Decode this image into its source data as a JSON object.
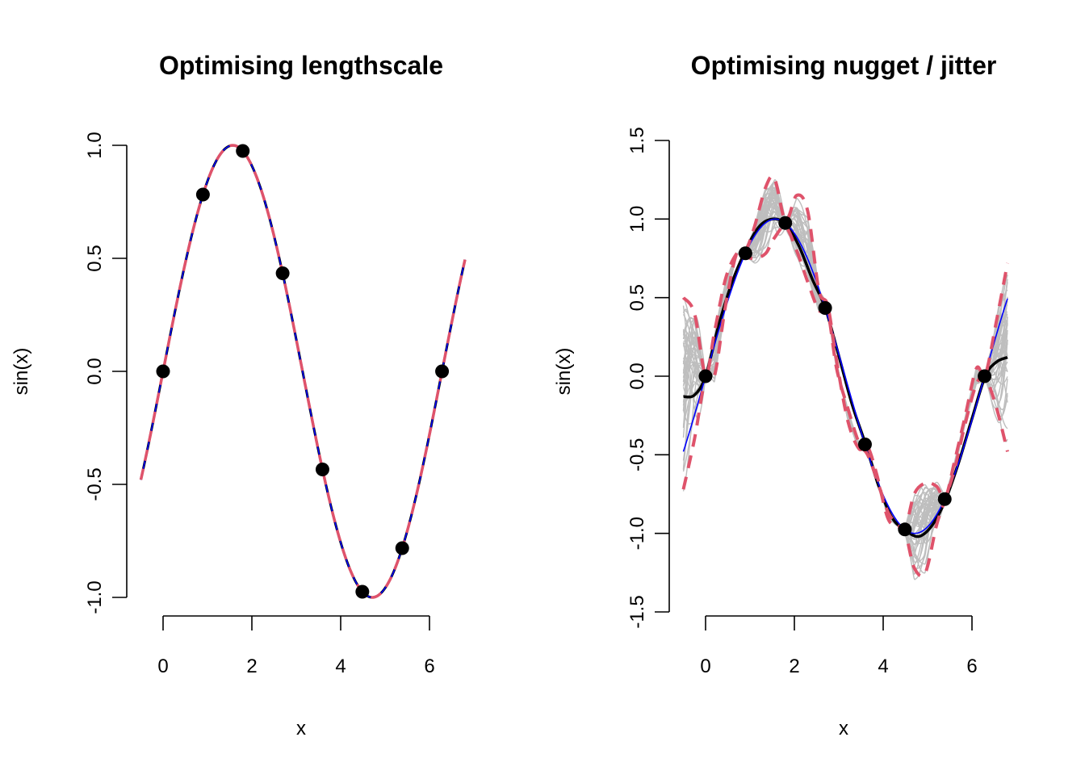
{
  "chart_data": [
    {
      "type": "line",
      "title": "Optimising lengthscale",
      "xlabel": "x",
      "ylabel": "sin(x)",
      "xlim": [
        -0.5,
        6.8
      ],
      "ylim": [
        -1.0,
        1.0
      ],
      "x_ticks": [
        0,
        2,
        4,
        6
      ],
      "y_ticks": [
        -1.0,
        -0.5,
        0.0,
        0.5,
        1.0
      ],
      "x_tick_labels": [
        "0",
        "2",
        "4",
        "6"
      ],
      "y_tick_labels": [
        "-1.0",
        "-0.5",
        "0.0",
        "0.5",
        "1.0"
      ],
      "grid": false,
      "points": {
        "x": [
          0.0,
          0.898,
          1.795,
          2.693,
          3.59,
          4.488,
          5.386,
          6.283
        ],
        "y": [
          0.0,
          0.782,
          0.975,
          0.434,
          -0.434,
          -0.975,
          -0.782,
          0.0
        ],
        "color": "#000000"
      },
      "series": [
        {
          "function": "sin",
          "x_range": [
            -0.5,
            6.8
          ],
          "color": "#000000",
          "style": "solid"
        },
        {
          "function": "sin",
          "x_range": [
            -0.5,
            6.8
          ],
          "color": "#0000ff",
          "style": "solid"
        },
        {
          "function": "sin",
          "x_range": [
            -0.5,
            6.8
          ],
          "color": "#df536b",
          "style": "dashed"
        }
      ]
    },
    {
      "type": "line",
      "title": "Optimising nugget / jitter",
      "xlabel": "x",
      "ylabel": "sin(x)",
      "xlim": [
        -0.5,
        6.8
      ],
      "ylim": [
        -1.5,
        1.5
      ],
      "x_ticks": [
        0,
        2,
        4,
        6
      ],
      "y_ticks": [
        -1.5,
        -1.0,
        -0.5,
        0.0,
        0.5,
        1.0,
        1.5
      ],
      "x_tick_labels": [
        "0",
        "2",
        "4",
        "6"
      ],
      "y_tick_labels": [
        "-1.5",
        "-1.0",
        "-0.5",
        "0.0",
        "0.5",
        "1.0",
        "1.5"
      ],
      "grid": false,
      "points": {
        "x": [
          0.0,
          0.898,
          1.795,
          2.693,
          3.59,
          4.488,
          5.386,
          6.283
        ],
        "y": [
          0.0,
          0.782,
          0.975,
          0.434,
          -0.434,
          -0.975,
          -0.782,
          0.0
        ],
        "color": "#000000"
      },
      "series": [
        {
          "name": "samples",
          "color": "#bebebe",
          "style": "solid",
          "count": 40
        },
        {
          "name": "mean",
          "color": "#000000",
          "style": "solid",
          "x": [
            -0.5,
            -0.25,
            0.0,
            0.3,
            0.6,
            0.9,
            1.2,
            1.5,
            1.8,
            2.1,
            2.4,
            2.7,
            3.0,
            3.3,
            3.6,
            3.9,
            4.2,
            4.5,
            4.8,
            5.1,
            5.4,
            5.7,
            6.0,
            6.3,
            6.55,
            6.8
          ],
          "y": [
            -0.13,
            -0.12,
            0.0,
            0.33,
            0.6,
            0.8,
            0.95,
            1.0,
            0.97,
            0.83,
            0.62,
            0.43,
            0.13,
            -0.18,
            -0.43,
            -0.7,
            -0.9,
            -0.98,
            -1.02,
            -0.95,
            -0.79,
            -0.55,
            -0.27,
            0.0,
            0.09,
            0.12
          ]
        },
        {
          "name": "truth",
          "function": "sin",
          "x_range": [
            -0.5,
            6.8
          ],
          "color": "#0000ff",
          "style": "solid"
        },
        {
          "name": "upper",
          "color": "#df536b",
          "style": "dashed",
          "x": [
            -0.5,
            -0.25,
            0.0,
            0.2,
            0.45,
            0.7,
            0.9,
            1.1,
            1.35,
            1.55,
            1.8,
            2.05,
            2.3,
            2.55,
            2.75,
            2.95,
            3.2,
            3.45,
            3.65,
            3.85,
            4.1,
            4.3,
            4.5,
            4.7,
            4.95,
            5.2,
            5.4,
            5.6,
            5.85,
            6.1,
            6.3,
            6.55,
            6.8
          ],
          "y": [
            0.5,
            0.4,
            0.01,
            0.28,
            0.62,
            0.78,
            0.8,
            0.95,
            1.2,
            1.26,
            0.99,
            1.15,
            1.05,
            0.55,
            0.45,
            0.1,
            -0.28,
            -0.46,
            -0.45,
            -0.62,
            -0.9,
            -0.95,
            -0.96,
            -0.75,
            -0.68,
            -0.7,
            -0.77,
            -0.55,
            -0.25,
            0.05,
            0.01,
            0.35,
            0.72
          ]
        },
        {
          "name": "lower",
          "color": "#df536b",
          "style": "dashed",
          "x": [
            -0.5,
            -0.25,
            0.0,
            0.2,
            0.45,
            0.7,
            0.9,
            1.1,
            1.35,
            1.55,
            1.8,
            2.05,
            2.3,
            2.55,
            2.75,
            2.95,
            3.2,
            3.45,
            3.65,
            3.85,
            4.1,
            4.3,
            4.5,
            4.7,
            4.95,
            5.2,
            5.4,
            5.6,
            5.85,
            6.1,
            6.3,
            6.55,
            6.8
          ],
          "y": [
            -0.72,
            -0.4,
            -0.01,
            0.0,
            0.45,
            0.78,
            0.76,
            0.75,
            0.78,
            0.88,
            0.95,
            0.8,
            0.6,
            0.42,
            0.41,
            0.05,
            -0.2,
            -0.42,
            -0.5,
            -0.65,
            -0.86,
            -0.94,
            -1.0,
            -1.22,
            -1.25,
            -0.95,
            -0.78,
            -0.6,
            -0.3,
            -0.05,
            -0.01,
            -0.2,
            -0.48
          ]
        }
      ]
    }
  ]
}
